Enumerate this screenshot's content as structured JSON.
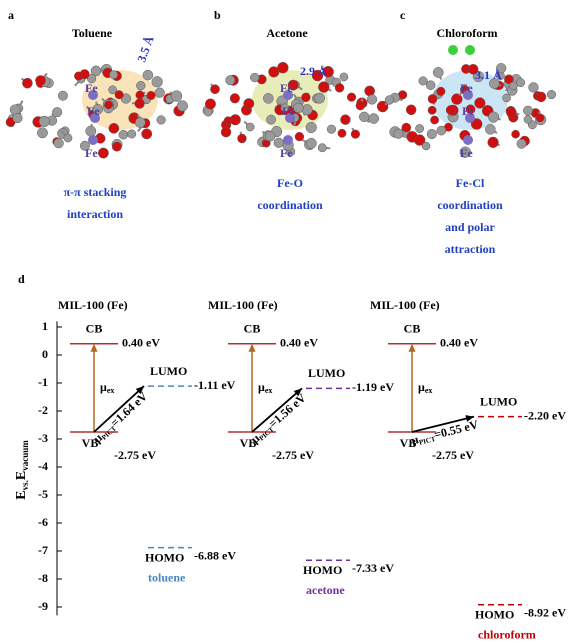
{
  "panels": [
    {
      "label": "a",
      "title": "Toluene",
      "distance": "3.5 Å",
      "fe": "Fe",
      "caption": [
        "π-π stacking",
        "interaction"
      ]
    },
    {
      "label": "b",
      "title": "Acetone",
      "distance": "2.9 Å",
      "fe": "Fe",
      "caption": [
        "Fe-O",
        "coordination"
      ]
    },
    {
      "label": "c",
      "title": "Chloroform",
      "distance": "3.1 Å",
      "fe": "Fe",
      "caption": [
        "Fe-Cl",
        "coordination",
        "and polar",
        "attraction"
      ]
    }
  ],
  "diagram": {
    "label": "d",
    "y_axis_label": {
      "main": "E",
      "sub1": "vs.",
      "main2": "E",
      "sub2": "vacuum"
    },
    "ylim": [
      1.2,
      -9.3
    ],
    "yticks": [
      1,
      0,
      -1,
      -2,
      -3,
      -4,
      -5,
      -6,
      -7,
      -8,
      -9
    ],
    "columns": [
      {
        "title": "MIL-100 (Fe)",
        "cb": {
          "name": "CB",
          "value": 0.4,
          "label": "0.40 eV"
        },
        "vb": {
          "name": "VB",
          "value": -2.75,
          "label": "-2.75 eV"
        },
        "lumo": {
          "name": "LUMO",
          "value": -1.11,
          "label": "-1.11 eV"
        },
        "homo": {
          "name": "HOMO",
          "value": -6.88,
          "label": "-6.88 eV"
        },
        "solvent": "toluene",
        "color": "#4a86c0",
        "mu_ex": {
          "symbol": "μ",
          "sub": "ex"
        },
        "mu_pict": {
          "symbol": "μ",
          "sub": "PICT",
          "text": "=1.64 eV"
        }
      },
      {
        "title": "MIL-100 (Fe)",
        "cb": {
          "name": "CB",
          "value": 0.4,
          "label": "0.40 eV"
        },
        "vb": {
          "name": "VB",
          "value": -2.75,
          "label": "-2.75 eV"
        },
        "lumo": {
          "name": "LUMO",
          "value": -1.19,
          "label": "-1.19 eV"
        },
        "homo": {
          "name": "HOMO",
          "value": -7.33,
          "label": "-7.33 eV"
        },
        "solvent": "acetone",
        "color": "#7030a0",
        "mu_ex": {
          "symbol": "μ",
          "sub": "ex"
        },
        "mu_pict": {
          "symbol": "μ",
          "sub": "PICT",
          "text": "=1.56 eV"
        }
      },
      {
        "title": "MIL-100 (Fe)",
        "cb": {
          "name": "CB",
          "value": 0.4,
          "label": "0.40 eV"
        },
        "vb": {
          "name": "VB",
          "value": -2.75,
          "label": "-2.75 eV"
        },
        "lumo": {
          "name": "LUMO",
          "value": -2.2,
          "label": "-2.20 eV"
        },
        "homo": {
          "name": "HOMO",
          "value": -8.92,
          "label": "-8.92 eV"
        },
        "solvent": "chloroform",
        "color": "#c00000",
        "mu_ex": {
          "symbol": "μ",
          "sub": "ex"
        },
        "mu_pict": {
          "symbol": "μ",
          "sub": "PICT",
          "text": "=0.55 eV"
        }
      }
    ]
  }
}
